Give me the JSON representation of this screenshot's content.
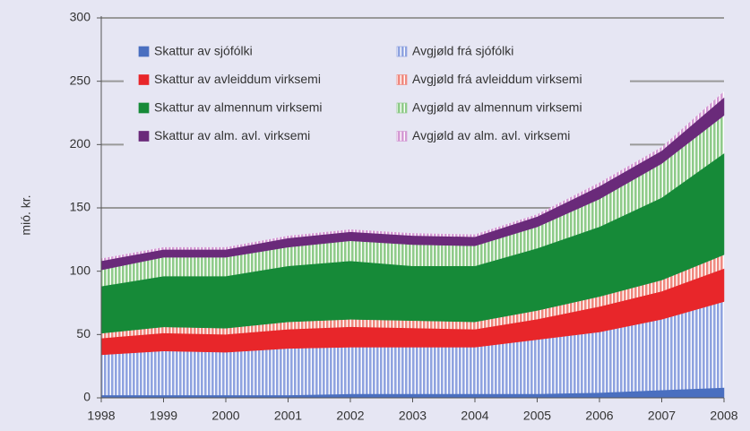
{
  "chart_data": {
    "type": "stacked_area",
    "y_label": "mió. kr.",
    "x": [
      1998,
      1999,
      2000,
      2001,
      2002,
      2003,
      2004,
      2005,
      2006,
      2007,
      2008
    ],
    "xlim": [
      1998,
      2008
    ],
    "xticks": [
      1998,
      1999,
      2000,
      2001,
      2002,
      2003,
      2004,
      2005,
      2006,
      2007,
      2008
    ],
    "ylim": [
      0,
      300
    ],
    "yticks": [
      0,
      50,
      100,
      150,
      200,
      250,
      300
    ],
    "grid": true,
    "series": [
      {
        "name": "Skattur av sjófólki",
        "color": "#4a6fc0",
        "hatched": false,
        "values": [
          2,
          2,
          2,
          2,
          3,
          3,
          3,
          3,
          4,
          6,
          8
        ]
      },
      {
        "name": "Avgjøld frá sjófólki",
        "color": "#8fa3e0",
        "hatched": true,
        "values": [
          32,
          35,
          34,
          37,
          37,
          37,
          37,
          43,
          48,
          56,
          68
        ]
      },
      {
        "name": "Skattur av avleiddum virksemi",
        "color": "#e8262a",
        "hatched": false,
        "values": [
          13,
          14,
          14,
          15,
          16,
          15,
          14,
          16,
          20,
          22,
          26
        ]
      },
      {
        "name": "Avgjøld frá avleiddum virksemi",
        "color": "#f08a80",
        "hatched": true,
        "values": [
          4,
          5,
          5,
          6,
          6,
          6,
          6,
          7,
          8,
          9,
          11
        ]
      },
      {
        "name": "Skattur av almennum virksemi",
        "color": "#168a38",
        "hatched": false,
        "values": [
          37,
          40,
          41,
          44,
          46,
          43,
          44,
          49,
          55,
          65,
          80
        ]
      },
      {
        "name": "Avgjøld av almennum virksemi",
        "color": "#8fcb8a",
        "hatched": true,
        "values": [
          13,
          15,
          15,
          15,
          16,
          17,
          16,
          17,
          22,
          27,
          30
        ]
      },
      {
        "name": "Skattur av alm. avl. virksemi",
        "color": "#6a2a7a",
        "hatched": false,
        "values": [
          7,
          6,
          6,
          7,
          7,
          7,
          7,
          8,
          10,
          10,
          14
        ]
      },
      {
        "name": "Avgjøld av alm. avl. virksemi",
        "color": "#d49ad4",
        "hatched": true,
        "values": [
          2,
          2,
          2,
          2,
          2,
          2,
          2,
          2,
          3,
          3,
          5
        ]
      }
    ]
  }
}
